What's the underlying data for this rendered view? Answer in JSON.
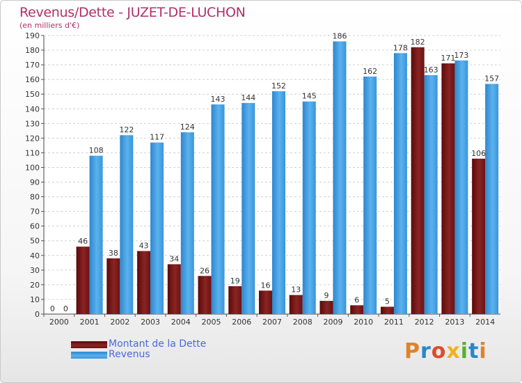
{
  "header": {
    "title": "Revenus/Dette - JUZET-DE-LUCHON",
    "subtitle": "(en milliers d'€)"
  },
  "legend": [
    {
      "label": "Montant de la Dette",
      "color": "#7a1a1a"
    },
    {
      "label": "Revenus",
      "color": "#3f9de0"
    }
  ],
  "logo": {
    "text": "Proxiti",
    "colors": [
      "#e0822a",
      "#2a86c8",
      "#e04a2a",
      "#f0b020",
      "#58b030",
      "#2a86c8",
      "#e0822a"
    ]
  },
  "chart_data": {
    "type": "bar",
    "title": "Revenus/Dette - JUZET-DE-LUCHON",
    "ylabel": "(en milliers d'€)",
    "categories": [
      "2000",
      "2001",
      "2002",
      "2003",
      "2004",
      "2005",
      "2006",
      "2007",
      "2008",
      "2009",
      "2010",
      "2011",
      "2012",
      "2013",
      "2014"
    ],
    "ylim": [
      0,
      190
    ],
    "ytick_step": 10,
    "grid": true,
    "legend_position": "bottom-left",
    "series": [
      {
        "name": "Montant de la Dette",
        "color": "#7a1a1a",
        "values": [
          0,
          46,
          38,
          43,
          34,
          26,
          19,
          16,
          13,
          9,
          6,
          5,
          182,
          171,
          106
        ]
      },
      {
        "name": "Revenus",
        "color": "#3f9de0",
        "values": [
          0,
          108,
          122,
          117,
          124,
          143,
          144,
          152,
          145,
          186,
          162,
          178,
          163,
          173,
          157
        ]
      }
    ]
  }
}
